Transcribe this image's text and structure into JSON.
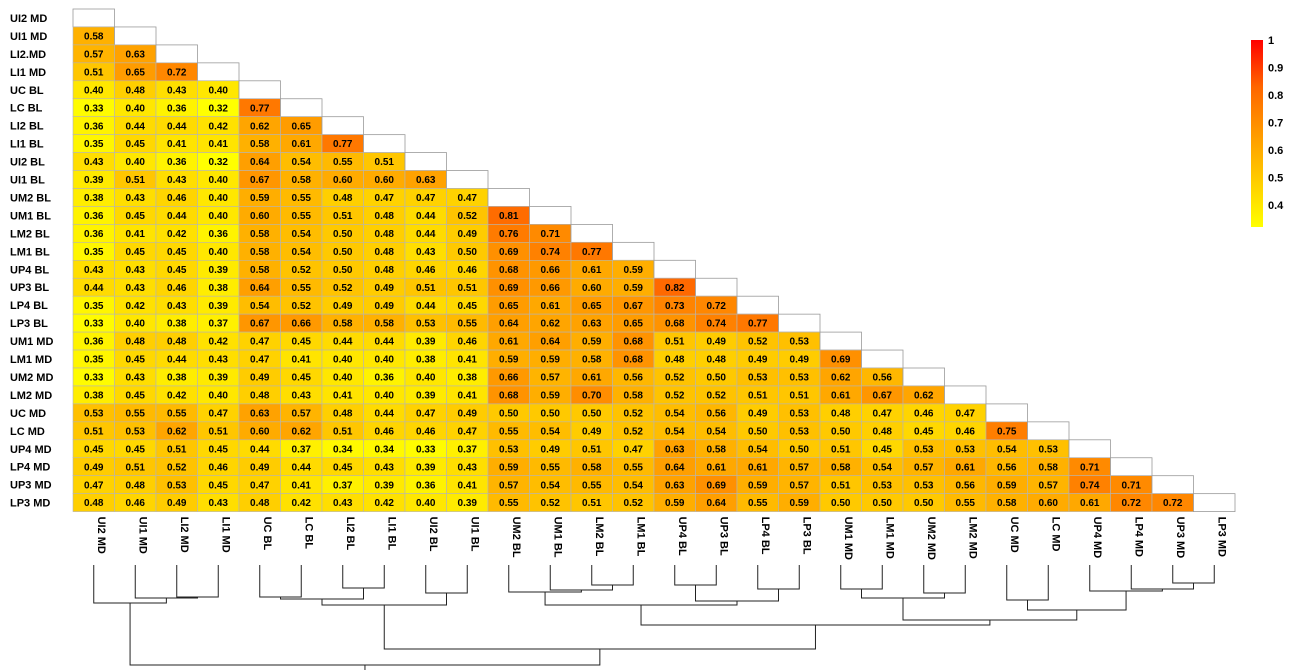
{
  "chart_data": {
    "type": "heatmap",
    "title": "",
    "labels": [
      "UI2 MD",
      "UI1 MD",
      "LI2.MD",
      "LI1 MD",
      "UC BL",
      "LC BL",
      "LI2 BL",
      "LI1 BL",
      "UI2 BL",
      "UI1 BL",
      "UM2 BL",
      "UM1 BL",
      "LM2 BL",
      "LM1 BL",
      "UP4 BL",
      "UP3 BL",
      "LP4 BL",
      "LP3 BL",
      "UM1 MD",
      "LM1 MD",
      "UM2 MD",
      "LM2 MD",
      "UC MD",
      "LC MD",
      "UP4 MD",
      "LP4 MD",
      "UP3 MD",
      "LP3 MD"
    ],
    "col_labels": [
      "UI2 MD",
      "UI1 MD",
      "LI2 MD",
      "LI1 MD",
      "UC BL",
      "LC BL",
      "LI2 BL",
      "LI1 BL",
      "UI2 BL",
      "UI1 BL",
      "UM2 BL",
      "UM1 BL",
      "LM2 BL",
      "LM1 BL",
      "UP4 BL",
      "UP3 BL",
      "LP4 BL",
      "LP3 BL",
      "UM1 MD",
      "LM1 MD",
      "UM2 MD",
      "LM2 MD",
      "UC MD",
      "LC MD",
      "UP4 MD",
      "LP4 MD",
      "UP3 MD",
      "LP3 MD"
    ],
    "values": [
      [],
      [
        0.58
      ],
      [
        0.57,
        0.63
      ],
      [
        0.51,
        0.65,
        0.72
      ],
      [
        0.4,
        0.48,
        0.43,
        0.4
      ],
      [
        0.33,
        0.4,
        0.36,
        0.32,
        0.77
      ],
      [
        0.36,
        0.44,
        0.44,
        0.42,
        0.62,
        0.65
      ],
      [
        0.35,
        0.45,
        0.41,
        0.41,
        0.58,
        0.61,
        0.77
      ],
      [
        0.43,
        0.4,
        0.36,
        0.32,
        0.64,
        0.54,
        0.55,
        0.51
      ],
      [
        0.39,
        0.51,
        0.43,
        0.4,
        0.67,
        0.58,
        0.6,
        0.6,
        0.63
      ],
      [
        0.38,
        0.43,
        0.46,
        0.4,
        0.59,
        0.55,
        0.48,
        0.47,
        0.47,
        0.47
      ],
      [
        0.36,
        0.45,
        0.44,
        0.4,
        0.6,
        0.55,
        0.51,
        0.48,
        0.44,
        0.52,
        0.81
      ],
      [
        0.36,
        0.41,
        0.42,
        0.36,
        0.58,
        0.54,
        0.5,
        0.48,
        0.44,
        0.49,
        0.76,
        0.71
      ],
      [
        0.35,
        0.45,
        0.45,
        0.4,
        0.58,
        0.54,
        0.5,
        0.48,
        0.43,
        0.5,
        0.69,
        0.74,
        0.77
      ],
      [
        0.43,
        0.43,
        0.45,
        0.39,
        0.58,
        0.52,
        0.5,
        0.48,
        0.46,
        0.46,
        0.68,
        0.66,
        0.61,
        0.59
      ],
      [
        0.44,
        0.43,
        0.46,
        0.38,
        0.64,
        0.55,
        0.52,
        0.49,
        0.51,
        0.51,
        0.69,
        0.66,
        0.6,
        0.59,
        0.82
      ],
      [
        0.35,
        0.42,
        0.43,
        0.39,
        0.54,
        0.52,
        0.49,
        0.49,
        0.44,
        0.45,
        0.65,
        0.61,
        0.65,
        0.67,
        0.73,
        0.72
      ],
      [
        0.33,
        0.4,
        0.38,
        0.37,
        0.67,
        0.66,
        0.58,
        0.58,
        0.53,
        0.55,
        0.64,
        0.62,
        0.63,
        0.65,
        0.68,
        0.74,
        0.77
      ],
      [
        0.36,
        0.48,
        0.48,
        0.42,
        0.47,
        0.45,
        0.44,
        0.44,
        0.39,
        0.46,
        0.61,
        0.64,
        0.59,
        0.68,
        0.51,
        0.49,
        0.52,
        0.53
      ],
      [
        0.35,
        0.45,
        0.44,
        0.43,
        0.47,
        0.41,
        0.4,
        0.4,
        0.38,
        0.41,
        0.59,
        0.59,
        0.58,
        0.68,
        0.48,
        0.48,
        0.49,
        0.49,
        0.69
      ],
      [
        0.33,
        0.43,
        0.38,
        0.39,
        0.49,
        0.45,
        0.4,
        0.36,
        0.4,
        0.38,
        0.66,
        0.57,
        0.61,
        0.56,
        0.52,
        0.5,
        0.53,
        0.53,
        0.62,
        0.56
      ],
      [
        0.38,
        0.45,
        0.42,
        0.4,
        0.48,
        0.43,
        0.41,
        0.4,
        0.39,
        0.41,
        0.68,
        0.59,
        0.7,
        0.58,
        0.52,
        0.52,
        0.51,
        0.51,
        0.61,
        0.67,
        0.62
      ],
      [
        0.53,
        0.55,
        0.55,
        0.47,
        0.63,
        0.57,
        0.48,
        0.44,
        0.47,
        0.49,
        0.5,
        0.5,
        0.5,
        0.52,
        0.54,
        0.56,
        0.49,
        0.53,
        0.48,
        0.47,
        0.46,
        0.47
      ],
      [
        0.51,
        0.53,
        0.62,
        0.51,
        0.6,
        0.62,
        0.51,
        0.46,
        0.46,
        0.47,
        0.55,
        0.54,
        0.49,
        0.52,
        0.54,
        0.54,
        0.5,
        0.53,
        0.5,
        0.48,
        0.45,
        0.46,
        0.75
      ],
      [
        0.45,
        0.45,
        0.51,
        0.45,
        0.44,
        0.37,
        0.34,
        0.34,
        0.33,
        0.37,
        0.53,
        0.49,
        0.51,
        0.47,
        0.63,
        0.58,
        0.54,
        0.5,
        0.51,
        0.45,
        0.53,
        0.53,
        0.54,
        0.53
      ],
      [
        0.49,
        0.51,
        0.52,
        0.46,
        0.49,
        0.44,
        0.45,
        0.43,
        0.39,
        0.43,
        0.59,
        0.55,
        0.58,
        0.55,
        0.64,
        0.61,
        0.61,
        0.57,
        0.58,
        0.54,
        0.57,
        0.61,
        0.56,
        0.58,
        0.71
      ],
      [
        0.47,
        0.48,
        0.53,
        0.45,
        0.47,
        0.41,
        0.37,
        0.39,
        0.36,
        0.41,
        0.57,
        0.54,
        0.55,
        0.54,
        0.63,
        0.69,
        0.59,
        0.57,
        0.51,
        0.53,
        0.53,
        0.56,
        0.59,
        0.57,
        0.74,
        0.71
      ],
      [
        0.48,
        0.46,
        0.49,
        0.43,
        0.48,
        0.42,
        0.43,
        0.42,
        0.4,
        0.39,
        0.55,
        0.52,
        0.51,
        0.52,
        0.59,
        0.64,
        0.55,
        0.59,
        0.5,
        0.5,
        0.5,
        0.55,
        0.58,
        0.6,
        0.61,
        0.72,
        0.72
      ]
    ],
    "color_scale": {
      "ticks": [
        "1",
        "0.9",
        "0.8",
        "0.7",
        "0.6",
        "0.5",
        "0.4"
      ],
      "min": 0.32,
      "max": 1.0,
      "colors": [
        "#ffff00",
        "#ffcc00",
        "#ff9900",
        "#ff6600",
        "#ff0000"
      ]
    },
    "dendrogram": true,
    "dendrogram_merges": [
      {
        "a": 26,
        "b": 27,
        "h": 0.18
      },
      {
        "a": 25,
        "b": "m0",
        "h": 0.24
      },
      {
        "a": 24,
        "b": "m1",
        "h": 0.26
      },
      {
        "a": 22,
        "b": 23,
        "h": 0.35
      },
      {
        "a": "m3",
        "b": "m2",
        "h": 0.45
      },
      {
        "a": 18,
        "b": 19,
        "h": 0.24
      },
      {
        "a": 20,
        "b": 21,
        "h": 0.28
      },
      {
        "a": "m5",
        "b": "m6",
        "h": 0.33
      },
      {
        "a": "m7",
        "b": "m4",
        "h": 0.55
      },
      {
        "a": 14,
        "b": 15,
        "h": 0.2
      },
      {
        "a": 16,
        "b": 17,
        "h": 0.24
      },
      {
        "a": "m9",
        "b": "m10",
        "h": 0.36
      },
      {
        "a": 12,
        "b": 13,
        "h": 0.2
      },
      {
        "a": 11,
        "b": "m12",
        "h": 0.25
      },
      {
        "a": 10,
        "b": "m13",
        "h": 0.27
      },
      {
        "a": "m14",
        "b": "m11",
        "h": 0.4
      },
      {
        "a": "m15",
        "b": "m8",
        "h": 0.6
      },
      {
        "a": 6,
        "b": 7,
        "h": 0.23
      },
      {
        "a": 8,
        "b": 9,
        "h": 0.28
      },
      {
        "a": 4,
        "b": 5,
        "h": 0.32
      },
      {
        "a": "m19",
        "b": "m17",
        "h": 0.34
      },
      {
        "a": "m20",
        "b": "m18",
        "h": 0.4
      },
      {
        "a": "m21",
        "b": "m16",
        "h": 0.84
      },
      {
        "a": 2,
        "b": 3,
        "h": 0.32
      },
      {
        "a": 1,
        "b": "m23",
        "h": 0.33
      },
      {
        "a": 0,
        "b": "m24",
        "h": 0.38
      },
      {
        "a": "m25",
        "b": "m22",
        "h": 1.0
      }
    ]
  }
}
